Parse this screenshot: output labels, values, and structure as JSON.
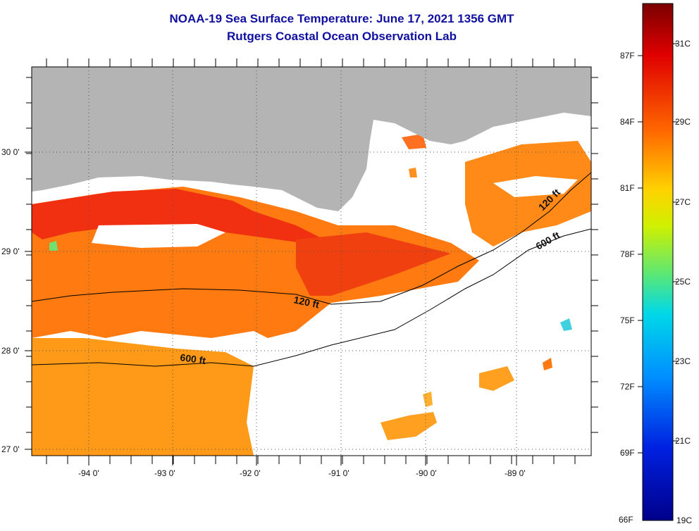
{
  "title": "NOAA-19 Sea Surface Temperature:  June 17, 2021 1356 GMT",
  "subtitle": "Rutgers Coastal Ocean Observation Lab",
  "map": {
    "x_ticks": [
      "-94 0'",
      "-93 0'",
      "-92 0'",
      "-91 0'",
      "-90 0'",
      "-89 0'"
    ],
    "y_ticks": [
      "30 0'",
      "29 0'",
      "28 0'",
      "27 0'"
    ],
    "contours": [
      "120 ft",
      "600 ft",
      "120 ft",
      "600 ft"
    ],
    "colors": {
      "land": "#b4b4b4",
      "no_data": "#ffffff",
      "grid": "#555555"
    }
  },
  "colorbar": {
    "fahrenheit": [
      "87F",
      "84F",
      "81F",
      "78F",
      "75F",
      "72F",
      "69F",
      "66F"
    ],
    "celsius": [
      "31C",
      "29C",
      "27C",
      "25C",
      "23C",
      "21C",
      "19C"
    ],
    "colors": [
      "#7a0000",
      "#e00000",
      "#ff6a00",
      "#ffd200",
      "#d0f000",
      "#60e870",
      "#00d8e8",
      "#0090ff",
      "#0020e0",
      "#00008a"
    ]
  }
}
